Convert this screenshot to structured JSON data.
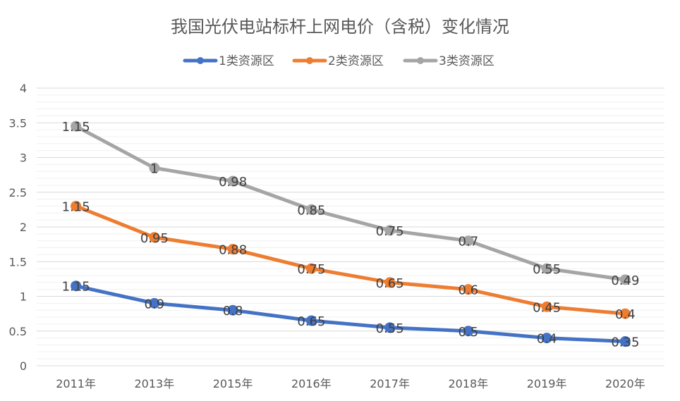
{
  "chart_data": {
    "type": "line",
    "title": "我国光伏电站标杆上网电价（含税）变化情况",
    "categories": [
      "2011年",
      "2013年",
      "2015年",
      "2016年",
      "2017年",
      "2018年",
      "2019年",
      "2020年"
    ],
    "ylim": [
      0,
      4
    ],
    "yticks": [
      "0",
      "0.5",
      "1",
      "1.5",
      "2",
      "2.5",
      "3",
      "3.5",
      "4"
    ],
    "legend_position": "top",
    "series": [
      {
        "name": "1类资源区",
        "color": "#4472c4",
        "values": [
          1.15,
          0.9,
          0.8,
          0.65,
          0.55,
          0.5,
          0.4,
          0.35
        ],
        "labels": [
          "1.15",
          "0.9",
          "0.8",
          "0.65",
          "0.55",
          "0.5",
          "0.4",
          "0.35"
        ]
      },
      {
        "name": "2类资源区",
        "color": "#ed7d31",
        "values": [
          2.3,
          1.85,
          1.68,
          1.4,
          1.2,
          1.1,
          0.85,
          0.75
        ],
        "labels": [
          "1.15",
          "0.95",
          "0.88",
          "0.75",
          "0.65",
          "0.6",
          "0.45",
          "0.4"
        ]
      },
      {
        "name": "3类资源区",
        "color": "#a5a5a5",
        "values": [
          3.45,
          2.85,
          2.66,
          2.25,
          1.95,
          1.8,
          1.4,
          1.24
        ],
        "labels": [
          "1.15",
          "1",
          "0.98",
          "0.85",
          "0.75",
          "0.7",
          "0.55",
          "0.49"
        ]
      }
    ]
  }
}
